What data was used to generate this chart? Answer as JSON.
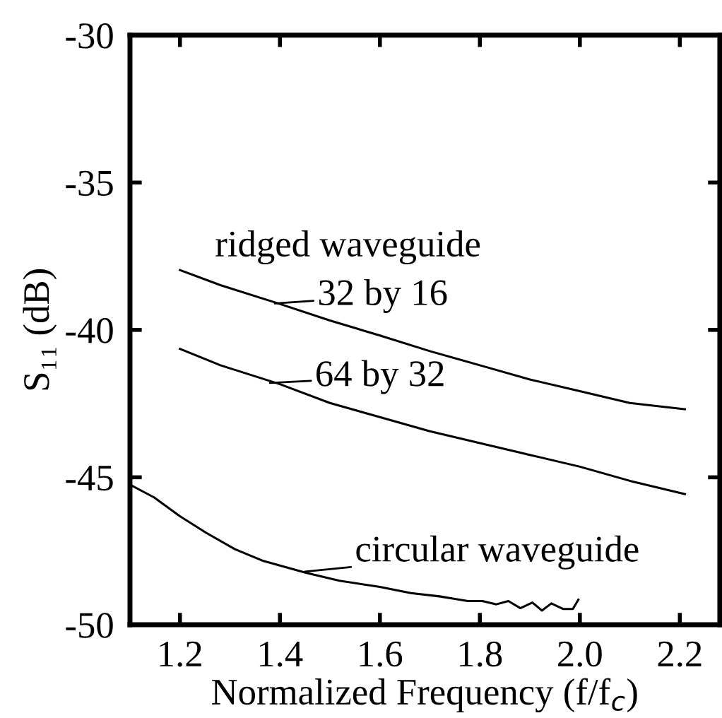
{
  "chart_data": {
    "type": "line",
    "xlabel": "Normalized Frequency (f/f$_{c}$)",
    "ylabel": "S₁₁ (dB)",
    "xlim": [
      1.1,
      2.28
    ],
    "ylim": [
      -50,
      -30
    ],
    "xticks": [
      {
        "value": 1.2,
        "label": "1.2"
      },
      {
        "value": 1.4,
        "label": "1.4"
      },
      {
        "value": 1.6,
        "label": "1.6"
      },
      {
        "value": 1.8,
        "label": "1.8"
      },
      {
        "value": 2.0,
        "label": "2.0"
      },
      {
        "value": 2.2,
        "label": "2.2"
      }
    ],
    "yticks": [
      -30,
      -35,
      -40,
      -45,
      -50
    ],
    "grid": false,
    "legend": false,
    "marker": "none",
    "line_style": "solid",
    "series": [
      {
        "color": "#000000",
        "x": [
          1.2,
          1.281,
          1.4,
          1.5,
          1.6,
          1.7,
          1.8,
          1.9,
          2.0,
          2.1,
          2.21
        ],
        "values": [
          -37.97,
          -38.48,
          -39.12,
          -39.68,
          -40.19,
          -40.72,
          -41.2,
          -41.68,
          -42.08,
          -42.48,
          -42.69
        ]
      },
      {
        "color": "#000000",
        "x": [
          1.2,
          1.281,
          1.4,
          1.5,
          1.6,
          1.7,
          1.8,
          1.9,
          2.0,
          2.1,
          2.21
        ],
        "values": [
          -40.64,
          -41.2,
          -41.84,
          -42.48,
          -42.96,
          -43.44,
          -43.84,
          -44.24,
          -44.64,
          -45.12,
          -45.57
        ]
      },
      {
        "color": "#000000",
        "x": [
          1.1,
          1.148,
          1.2,
          1.252,
          1.31,
          1.367,
          1.452,
          1.519,
          1.6,
          1.662,
          1.719,
          1.748,
          1.776,
          1.805,
          1.833,
          1.857,
          1.881,
          1.905,
          1.924,
          1.943,
          1.967,
          1.986,
          1.997
        ],
        "values": [
          -45.25,
          -45.68,
          -46.32,
          -46.88,
          -47.44,
          -47.84,
          -48.24,
          -48.51,
          -48.72,
          -48.93,
          -49.04,
          -49.12,
          -49.2,
          -49.2,
          -49.31,
          -49.2,
          -49.44,
          -49.25,
          -49.52,
          -49.28,
          -49.47,
          -49.47,
          -49.15
        ]
      }
    ],
    "annotations": [
      "ridged waveguide",
      {
        "text": "32 by 16",
        "x": 1.39,
        "y": -39.1
      },
      {
        "text": "64 by 32",
        "x": 1.38,
        "y": -41.8
      },
      {
        "text": "circular waveguide",
        "x": 1.45,
        "y": -48.2
      }
    ]
  }
}
